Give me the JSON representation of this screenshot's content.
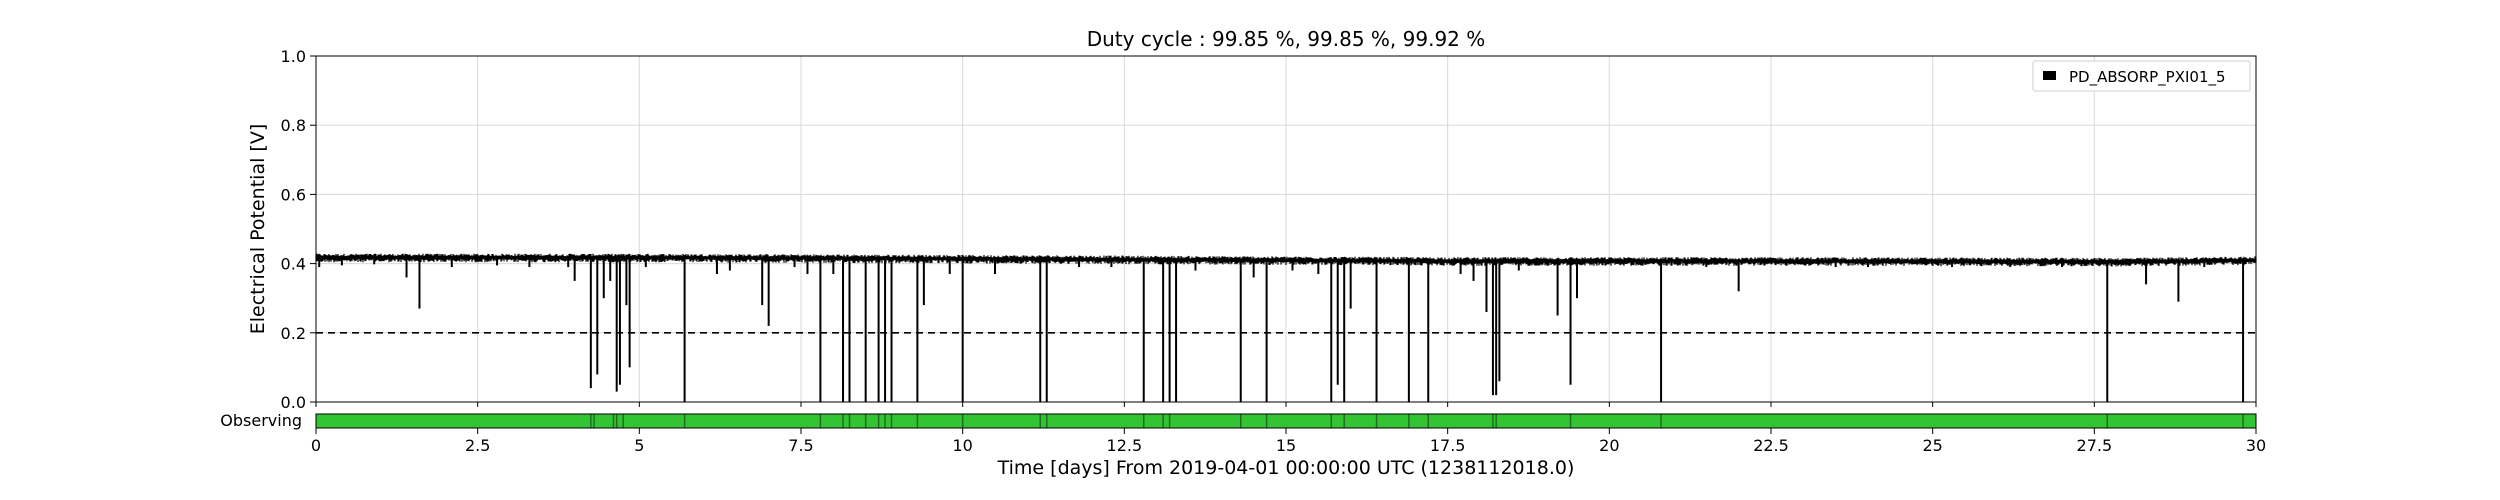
{
  "chart_data": {
    "type": "line",
    "title": "Duty cycle : 99.85 %, 99.85 %, 99.92 %",
    "xlabel": "Time [days] From 2019-04-01 00:00:00 UTC (1238112018.0)",
    "ylabel": "Electrical Potential [V]",
    "xlim": [
      0,
      30
    ],
    "ylim": [
      0,
      1.0
    ],
    "x_ticks": [
      0,
      2.5,
      5,
      7.5,
      10,
      12.5,
      15,
      17.5,
      20,
      22.5,
      25,
      27.5,
      30
    ],
    "x_tick_labels": [
      "0",
      "2.5",
      "5",
      "7.5",
      "10",
      "12.5",
      "15",
      "17.5",
      "20",
      "22.5",
      "25",
      "27.5",
      "30"
    ],
    "y_ticks": [
      0,
      0.2,
      0.4,
      0.6,
      0.8,
      1.0
    ],
    "y_tick_labels": [
      "0.0",
      "0.2",
      "0.4",
      "0.6",
      "0.8",
      "1.0"
    ],
    "grid": true,
    "legend": {
      "position": "top-right",
      "entries": [
        {
          "name": "PD_ABSORP_PXI01_5",
          "color": "#000000"
        }
      ]
    },
    "series": [
      {
        "name": "PD_ABSORP_PXI01_5",
        "color": "#000000",
        "baseline": {
          "x": [
            0,
            2,
            5,
            8,
            12,
            15,
            17.5,
            20,
            22.5,
            25,
            28,
            30
          ],
          "y": [
            0.418,
            0.418,
            0.418,
            0.416,
            0.413,
            0.41,
            0.408,
            0.408,
            0.408,
            0.407,
            0.406,
            0.41
          ]
        },
        "noise_band": 0.012,
        "dips": [
          {
            "x": 0.05,
            "y": 0.39
          },
          {
            "x": 0.4,
            "y": 0.395
          },
          {
            "x": 0.9,
            "y": 0.398
          },
          {
            "x": 1.4,
            "y": 0.36
          },
          {
            "x": 1.6,
            "y": 0.27
          },
          {
            "x": 2.1,
            "y": 0.39
          },
          {
            "x": 2.8,
            "y": 0.395
          },
          {
            "x": 3.3,
            "y": 0.39
          },
          {
            "x": 3.9,
            "y": 0.39
          },
          {
            "x": 4.0,
            "y": 0.35
          },
          {
            "x": 4.25,
            "y": 0.04
          },
          {
            "x": 4.35,
            "y": 0.08
          },
          {
            "x": 4.45,
            "y": 0.3
          },
          {
            "x": 4.55,
            "y": 0.35
          },
          {
            "x": 4.65,
            "y": 0.03
          },
          {
            "x": 4.7,
            "y": 0.05
          },
          {
            "x": 4.8,
            "y": 0.28
          },
          {
            "x": 4.85,
            "y": 0.1
          },
          {
            "x": 5.1,
            "y": 0.39
          },
          {
            "x": 5.7,
            "y": 0.0
          },
          {
            "x": 6.2,
            "y": 0.37
          },
          {
            "x": 6.4,
            "y": 0.38
          },
          {
            "x": 6.9,
            "y": 0.28
          },
          {
            "x": 7.0,
            "y": 0.22
          },
          {
            "x": 7.4,
            "y": 0.39
          },
          {
            "x": 7.6,
            "y": 0.37
          },
          {
            "x": 7.8,
            "y": 0.0
          },
          {
            "x": 8.0,
            "y": 0.37
          },
          {
            "x": 8.15,
            "y": 0.0
          },
          {
            "x": 8.25,
            "y": 0.0
          },
          {
            "x": 8.5,
            "y": 0.0
          },
          {
            "x": 8.7,
            "y": 0.0
          },
          {
            "x": 8.8,
            "y": 0.0
          },
          {
            "x": 8.9,
            "y": 0.0
          },
          {
            "x": 9.3,
            "y": 0.0
          },
          {
            "x": 9.4,
            "y": 0.28
          },
          {
            "x": 9.8,
            "y": 0.37
          },
          {
            "x": 10.0,
            "y": 0.0
          },
          {
            "x": 10.5,
            "y": 0.37
          },
          {
            "x": 11.2,
            "y": 0.0
          },
          {
            "x": 11.3,
            "y": 0.0
          },
          {
            "x": 11.8,
            "y": 0.39
          },
          {
            "x": 12.3,
            "y": 0.39
          },
          {
            "x": 12.8,
            "y": 0.0
          },
          {
            "x": 13.1,
            "y": 0.0
          },
          {
            "x": 13.2,
            "y": 0.0
          },
          {
            "x": 13.3,
            "y": 0.0
          },
          {
            "x": 13.6,
            "y": 0.38
          },
          {
            "x": 14.3,
            "y": 0.0
          },
          {
            "x": 14.5,
            "y": 0.36
          },
          {
            "x": 14.7,
            "y": 0.0
          },
          {
            "x": 15.1,
            "y": 0.38
          },
          {
            "x": 15.5,
            "y": 0.37
          },
          {
            "x": 15.7,
            "y": 0.0
          },
          {
            "x": 15.8,
            "y": 0.05
          },
          {
            "x": 15.9,
            "y": 0.0
          },
          {
            "x": 16.0,
            "y": 0.27
          },
          {
            "x": 16.4,
            "y": 0.0
          },
          {
            "x": 16.9,
            "y": 0.0
          },
          {
            "x": 17.2,
            "y": 0.0
          },
          {
            "x": 17.7,
            "y": 0.37
          },
          {
            "x": 17.9,
            "y": 0.35
          },
          {
            "x": 18.1,
            "y": 0.26
          },
          {
            "x": 18.2,
            "y": 0.02
          },
          {
            "x": 18.25,
            "y": 0.02
          },
          {
            "x": 18.3,
            "y": 0.06
          },
          {
            "x": 18.6,
            "y": 0.38
          },
          {
            "x": 19.2,
            "y": 0.25
          },
          {
            "x": 19.4,
            "y": 0.05
          },
          {
            "x": 19.5,
            "y": 0.3
          },
          {
            "x": 20.8,
            "y": 0.0
          },
          {
            "x": 21.5,
            "y": 0.39
          },
          {
            "x": 22.0,
            "y": 0.32
          },
          {
            "x": 23.5,
            "y": 0.39
          },
          {
            "x": 24.0,
            "y": 0.39
          },
          {
            "x": 25.3,
            "y": 0.39
          },
          {
            "x": 26.2,
            "y": 0.39
          },
          {
            "x": 27.0,
            "y": 0.39
          },
          {
            "x": 27.7,
            "y": 0.0
          },
          {
            "x": 28.3,
            "y": 0.34
          },
          {
            "x": 28.8,
            "y": 0.29
          },
          {
            "x": 29.2,
            "y": 0.39
          },
          {
            "x": 29.8,
            "y": 0.0
          }
        ]
      }
    ],
    "threshold": {
      "y": 0.2,
      "style": "dashed",
      "color": "#000000"
    },
    "state_bar": {
      "label": "Observing",
      "color": "#33c433",
      "gap_color": "#1f6e1f",
      "gaps": [
        4.25,
        4.3,
        4.6,
        4.65,
        4.75,
        5.7,
        7.8,
        8.15,
        8.25,
        8.5,
        8.7,
        8.8,
        8.9,
        9.3,
        10.0,
        11.2,
        11.3,
        12.8,
        13.1,
        13.2,
        14.3,
        14.7,
        15.7,
        15.9,
        16.4,
        16.9,
        17.2,
        18.2,
        18.25,
        19.4,
        20.8,
        27.7,
        29.8
      ]
    }
  }
}
